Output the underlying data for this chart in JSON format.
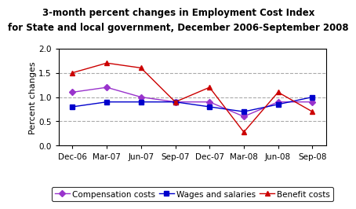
{
  "title_line1": "3-month percent changes in Employment Cost Index",
  "title_line2": "for State and local government, December 2006-September 2008",
  "ylabel": "Percent changes",
  "xlabels": [
    "Dec-06",
    "Mar-07",
    "Jun-07",
    "Sep-07",
    "Dec-07",
    "Mar-08",
    "Jun-08",
    "Sep-08"
  ],
  "compensation": [
    1.1,
    1.2,
    1.0,
    0.9,
    0.9,
    0.6,
    0.9,
    0.9
  ],
  "wages": [
    0.8,
    0.9,
    0.9,
    0.9,
    0.8,
    0.7,
    0.85,
    1.0
  ],
  "benefits": [
    1.5,
    1.7,
    1.6,
    0.9,
    1.2,
    0.28,
    1.1,
    0.7
  ],
  "comp_color": "#9933cc",
  "wages_color": "#0000cc",
  "benefits_color": "#cc0000",
  "ylim": [
    0.0,
    2.0
  ],
  "yticks": [
    0.0,
    0.5,
    1.0,
    1.5,
    2.0
  ],
  "bg_color": "#ffffff",
  "plot_bg": "#ffffff",
  "grid_color": "#aaaaaa",
  "title_fontsize": 8.5,
  "legend_fontsize": 7.5,
  "tick_fontsize": 7.5,
  "ylabel_fontsize": 8
}
